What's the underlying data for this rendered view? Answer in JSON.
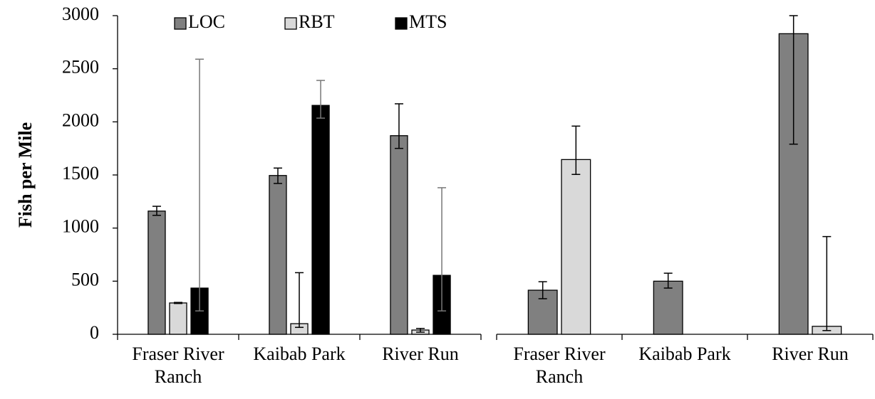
{
  "chart_data": [
    {
      "type": "bar",
      "ylabel": "Fish per Mile",
      "categories": [
        "Fraser River Ranch",
        "Kaibab Park",
        "River Run"
      ],
      "ylim": [
        0,
        3000
      ],
      "yticks": [
        0,
        500,
        1000,
        1500,
        2000,
        2500,
        3000
      ],
      "legend": "top",
      "series": [
        {
          "name": "LOC",
          "color": "#808080",
          "error_color": "#000000",
          "values": [
            1160,
            1495,
            1870
          ],
          "err_low": [
            1120,
            1420,
            1750
          ],
          "err_high": [
            1205,
            1565,
            2170
          ]
        },
        {
          "name": "RBT",
          "color": "#d9d9d9",
          "error_color": "#000000",
          "values": [
            295,
            100,
            40
          ],
          "err_low": [
            290,
            65,
            20
          ],
          "err_high": [
            300,
            580,
            55
          ]
        },
        {
          "name": "MTS",
          "color": "#000000",
          "error_color": "#777777",
          "values": [
            435,
            2155,
            555
          ],
          "err_low": [
            220,
            2035,
            220
          ],
          "err_high": [
            2590,
            2390,
            1380
          ]
        }
      ]
    },
    {
      "type": "bar",
      "categories": [
        "Fraser River Ranch",
        "Kaibab Park",
        "River Run"
      ],
      "ylim": [
        0,
        3000
      ],
      "series": [
        {
          "color": "#808080",
          "error_color": "#000000",
          "values": [
            415,
            500,
            2830
          ],
          "err_low": [
            335,
            435,
            1790
          ],
          "err_high": [
            495,
            575,
            3000
          ]
        },
        {
          "color": "#d9d9d9",
          "error_color": "#000000",
          "values": [
            1645,
            null,
            75
          ],
          "err_low": [
            1505,
            null,
            35
          ],
          "err_high": [
            1960,
            null,
            920
          ]
        }
      ]
    }
  ]
}
